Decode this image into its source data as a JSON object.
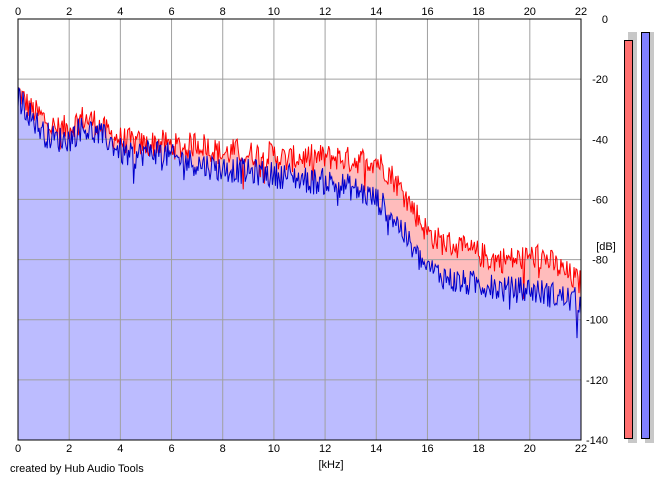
{
  "chart_data": {
    "type": "area",
    "xlabel": "[kHz]",
    "ylabel": "[dB]",
    "xlim": [
      0,
      22
    ],
    "ylim": [
      -140,
      0
    ],
    "x_ticks": [
      "0",
      "2",
      "4",
      "6",
      "8",
      "10",
      "12",
      "14",
      "16",
      "18",
      "20",
      "22"
    ],
    "y_ticks": [
      "0",
      "-20",
      "-40",
      "-60",
      "-80",
      "-100",
      "-120",
      "-140"
    ],
    "grid": true,
    "series": [
      {
        "color": "#ff0000",
        "fill": "#ffbcbc",
        "x": [
          0,
          0.5,
          1,
          1.5,
          2,
          2.5,
          3,
          3.5,
          4,
          4.5,
          5,
          5.5,
          6,
          6.5,
          7,
          7.5,
          8,
          8.5,
          9,
          9.5,
          10,
          10.5,
          11,
          11.5,
          12,
          12.5,
          13,
          13.5,
          14,
          14.5,
          15,
          15.5,
          16,
          16.5,
          17,
          17.5,
          18,
          18.5,
          19,
          19.5,
          20,
          20.5,
          21,
          21.5,
          22
        ],
        "y": [
          -24,
          -30,
          -33,
          -37,
          -36,
          -33,
          -34,
          -38,
          -40,
          -41,
          -42,
          -41,
          -42,
          -43,
          -41,
          -43,
          -45,
          -44,
          -45,
          -45,
          -45,
          -47,
          -46,
          -46,
          -46,
          -46,
          -47,
          -47,
          -47,
          -51,
          -57,
          -64,
          -71,
          -74,
          -75,
          -77,
          -78,
          -80,
          -80,
          -80,
          -79,
          -79,
          -82,
          -85,
          -88
        ]
      },
      {
        "color": "#0000cc",
        "fill": "#bcbcff",
        "x": [
          0,
          0.5,
          1,
          1.5,
          2,
          2.5,
          3,
          3.5,
          4,
          4.5,
          5,
          5.5,
          6,
          6.5,
          7,
          7.5,
          8,
          8.5,
          9,
          9.5,
          10,
          10.5,
          11,
          11.5,
          12,
          12.5,
          13,
          13.5,
          14,
          14.5,
          15,
          15.5,
          16,
          16.5,
          17,
          17.5,
          18,
          18.5,
          19,
          19.5,
          20,
          20.5,
          21,
          21.5,
          22
        ],
        "y": [
          -26,
          -32,
          -38,
          -40,
          -40,
          -36,
          -38,
          -40,
          -44,
          -46,
          -44,
          -44,
          -46,
          -47,
          -48,
          -49,
          -50,
          -50,
          -51,
          -51,
          -52,
          -52,
          -53,
          -54,
          -54,
          -55,
          -56,
          -58,
          -60,
          -64,
          -70,
          -78,
          -83,
          -85,
          -87,
          -88,
          -88,
          -89,
          -90,
          -90,
          -90,
          -91,
          -92,
          -93,
          -94
        ]
      }
    ],
    "meters": [
      {
        "color": "#ff7070",
        "level": 0.97
      },
      {
        "color": "#8080ff",
        "level": 0.99
      }
    ]
  },
  "footer_text": "created by Hub Audio Tools"
}
